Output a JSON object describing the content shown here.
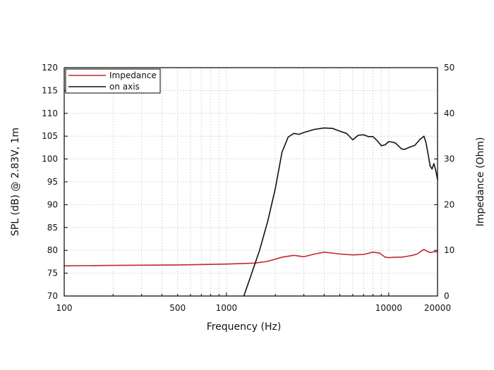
{
  "chart_data": {
    "type": "line",
    "title": "",
    "xlabel": "Frequency (Hz)",
    "ylabel": "SPL (dB) @ 2.83V, 1m",
    "y2label": "Impedance (Ohm)",
    "xscale": "log",
    "xlim": [
      100,
      20000
    ],
    "ylim": [
      70,
      120
    ],
    "y2lim": [
      0,
      50
    ],
    "grid": true,
    "legend_position": "top-left",
    "x_ticks": [
      {
        "value": 100,
        "label": "100"
      },
      {
        "value": 500,
        "label": "500"
      },
      {
        "value": 1000,
        "label": "1000"
      },
      {
        "value": 10000,
        "label": "10000"
      },
      {
        "value": 20000,
        "label": "20000"
      }
    ],
    "y_ticks": [
      {
        "value": 70,
        "label": "70"
      },
      {
        "value": 75,
        "label": "75"
      },
      {
        "value": 80,
        "label": "80"
      },
      {
        "value": 85,
        "label": "85"
      },
      {
        "value": 90,
        "label": "90"
      },
      {
        "value": 95,
        "label": "95"
      },
      {
        "value": 100,
        "label": "100"
      },
      {
        "value": 105,
        "label": "105"
      },
      {
        "value": 110,
        "label": "110"
      },
      {
        "value": 115,
        "label": "115"
      },
      {
        "value": 120,
        "label": "120"
      }
    ],
    "y2_ticks": [
      {
        "value": 0,
        "label": "0"
      },
      {
        "value": 10,
        "label": "10"
      },
      {
        "value": 20,
        "label": "20"
      },
      {
        "value": 30,
        "label": "30"
      },
      {
        "value": 40,
        "label": "40"
      },
      {
        "value": 50,
        "label": "50"
      }
    ],
    "series": [
      {
        "name": "Impedance",
        "color": "#c0282d",
        "axis": "right",
        "x": [
          100,
          200,
          500,
          1000,
          1500,
          1800,
          2200,
          2600,
          3000,
          3500,
          4000,
          5000,
          6000,
          7000,
          8000,
          8800,
          9500,
          10000,
          11000,
          12000,
          13000,
          14000,
          15000,
          16000,
          16500,
          17000,
          18000,
          19000,
          20000
        ],
        "values": [
          6.6,
          6.7,
          6.8,
          7.0,
          7.2,
          7.6,
          8.5,
          8.9,
          8.6,
          9.2,
          9.6,
          9.2,
          9.0,
          9.1,
          9.6,
          9.4,
          8.5,
          8.4,
          8.5,
          8.5,
          8.7,
          8.9,
          9.2,
          9.9,
          10.2,
          9.9,
          9.5,
          9.7,
          9.7
        ]
      },
      {
        "name": "on axis",
        "color": "#111111",
        "axis": "left",
        "x": [
          1280,
          1400,
          1600,
          1800,
          2000,
          2200,
          2400,
          2600,
          2800,
          3000,
          3500,
          4000,
          4500,
          5000,
          5500,
          6000,
          6500,
          7000,
          7500,
          8000,
          8500,
          9000,
          9500,
          10000,
          10500,
          11000,
          12000,
          12500,
          13500,
          14500,
          15500,
          16500,
          17000,
          17500,
          18000,
          18500,
          19000,
          19500,
          20000
        ],
        "values": [
          70.0,
          74.0,
          80.0,
          86.5,
          93.5,
          101.5,
          104.8,
          105.6,
          105.4,
          105.8,
          106.5,
          106.8,
          106.7,
          106.1,
          105.6,
          104.2,
          105.2,
          105.3,
          104.9,
          104.9,
          104.0,
          102.9,
          103.1,
          103.8,
          103.7,
          103.5,
          102.2,
          102.1,
          102.6,
          103.0,
          104.2,
          105.0,
          103.5,
          101.0,
          98.5,
          97.8,
          99.0,
          97.5,
          95.5
        ]
      }
    ]
  }
}
